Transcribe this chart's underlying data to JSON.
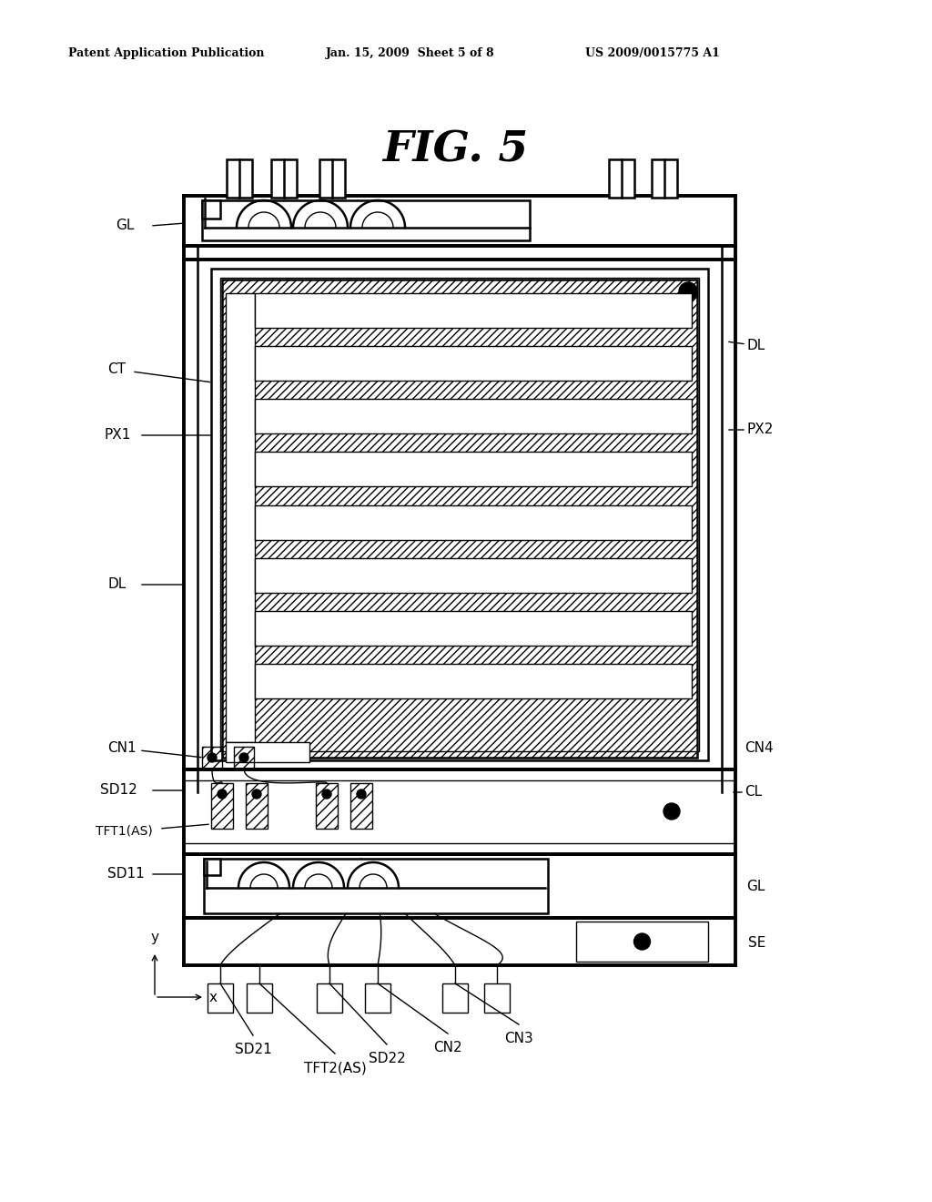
{
  "bg": "#ffffff",
  "fg": "#000000",
  "header_left": "Patent Application Publication",
  "header_mid": "Jan. 15, 2009  Sheet 5 of 8",
  "header_right": "US 2009/0015775 A1",
  "fig_title": "FIG. 5",
  "labels": {
    "GL_top": "GL",
    "DL_right": "DL",
    "CT": "CT",
    "PX1": "PX1",
    "PX2": "PX2",
    "DL_left": "DL",
    "CN1": "CN1",
    "CN4": "CN4",
    "SD12": "SD12",
    "CL": "CL",
    "TFT1": "TFT1(AS)",
    "GL_bot": "GL",
    "SD11": "SD11",
    "SE": "SE",
    "SD21": "SD21",
    "TFT2": "TFT2(AS)",
    "SD22": "SD22",
    "CN2": "CN2",
    "CN3": "CN3",
    "y_lbl": "y",
    "x_lbl": "x"
  },
  "lw1": 1.0,
  "lw2": 1.8,
  "lw3": 2.8
}
